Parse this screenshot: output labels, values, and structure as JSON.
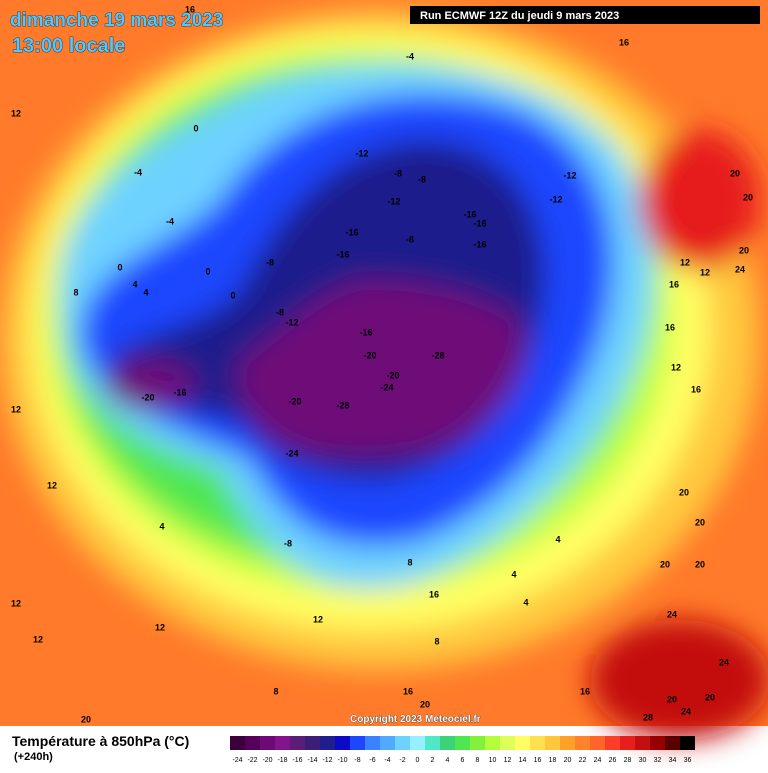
{
  "header": {
    "date": "dimanche 19 mars 2023",
    "time": "13:00 locale",
    "run": "Run ECMWF 12Z du jeudi 9 mars 2023"
  },
  "map": {
    "labels": [
      -12,
      -8,
      -8,
      -12,
      -16,
      -16,
      -16,
      -8,
      -16,
      -16,
      -12,
      -12,
      -8,
      -8,
      -12,
      -16,
      -20,
      -28,
      -20,
      -24,
      -20,
      -28,
      -24,
      -20,
      -16,
      -8,
      -4,
      -4,
      0,
      0,
      0,
      0,
      4,
      4,
      8,
      12,
      12,
      12,
      4,
      12,
      12,
      12,
      16,
      16,
      -4,
      20,
      20,
      20,
      24,
      12,
      12,
      16,
      16,
      12,
      16,
      20,
      20,
      20,
      20,
      24,
      24,
      20,
      24,
      20,
      28,
      16,
      16,
      20,
      8,
      12,
      8,
      16,
      8,
      4,
      4,
      4,
      20
    ]
  },
  "footer": {
    "title": "Température à 850hPa (°C)",
    "lead": "(+240h)",
    "copyright": "Copyright 2023 Meteociel.fr"
  },
  "legend": {
    "labels": [
      -24,
      -22,
      -20,
      -18,
      -16,
      -14,
      -12,
      -10,
      -8,
      -6,
      -4,
      -2,
      0,
      2,
      4,
      6,
      8,
      10,
      12,
      14,
      16,
      18,
      20,
      22,
      24,
      26,
      28,
      30,
      32,
      34,
      36
    ],
    "colors": [
      "#3c003c",
      "#55005a",
      "#6e0a78",
      "#82148c",
      "#5a1e78",
      "#3c1e78",
      "#1e1e8c",
      "#0a0ac8",
      "#1e46ff",
      "#3c82ff",
      "#50aaff",
      "#6ed2ff",
      "#96f0ff",
      "#50e6c8",
      "#3cd278",
      "#50e650",
      "#82f03c",
      "#b4ff3c",
      "#dcff5a",
      "#ffff64",
      "#ffe150",
      "#ffc83c",
      "#ffa028",
      "#ff822d",
      "#ff6428",
      "#ff3c28",
      "#e61e1e",
      "#c30f0f",
      "#960000",
      "#5a0000",
      "#000000"
    ]
  }
}
